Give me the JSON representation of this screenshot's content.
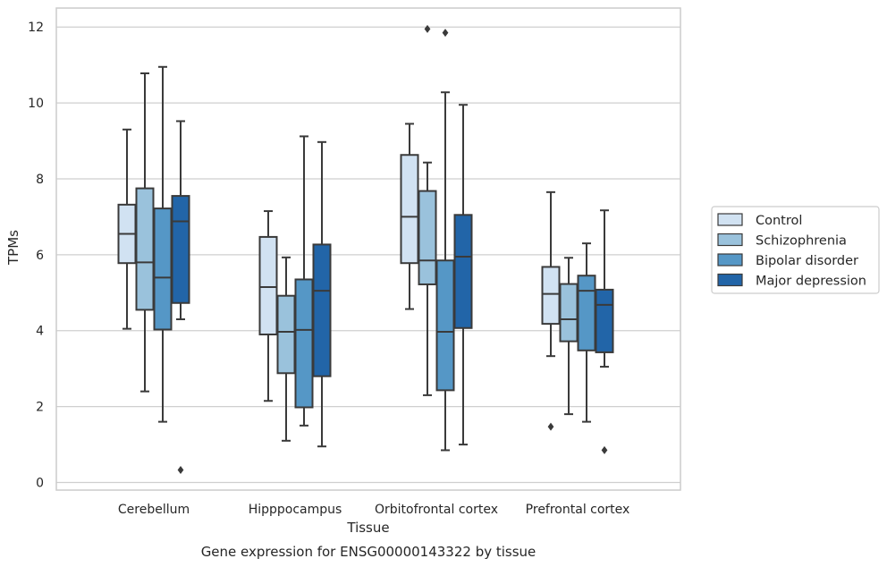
{
  "chart_data": {
    "type": "box",
    "xlabel": "Tissue",
    "ylabel": "TPMs",
    "caption": "Gene expression for ENSG00000143322 by tissue",
    "ylim": [
      -0.2,
      12.5
    ],
    "yticks": [
      0,
      2,
      4,
      6,
      8,
      10,
      12
    ],
    "grid": "horizontal",
    "legend_position": "right",
    "categories": [
      "Cerebellum",
      "Hipppocampus",
      "Orbitofrontal cortex",
      "Prefrontal cortex"
    ],
    "series": [
      {
        "name": "Control",
        "color": "#d1e2f2",
        "boxes": [
          {
            "whislo": 4.05,
            "q1": 5.78,
            "med": 6.55,
            "q3": 7.32,
            "whishi": 9.3,
            "fliers": []
          },
          {
            "whislo": 2.15,
            "q1": 3.9,
            "med": 5.15,
            "q3": 6.47,
            "whishi": 7.15,
            "fliers": []
          },
          {
            "whislo": 4.57,
            "q1": 5.78,
            "med": 7.0,
            "q3": 8.63,
            "whishi": 9.45,
            "fliers": []
          },
          {
            "whislo": 3.33,
            "q1": 4.18,
            "med": 4.97,
            "q3": 5.68,
            "whishi": 7.65,
            "fliers": [
              1.47
            ]
          }
        ]
      },
      {
        "name": "Schizophrenia",
        "color": "#9ac2dc",
        "boxes": [
          {
            "whislo": 2.4,
            "q1": 4.55,
            "med": 5.8,
            "q3": 7.75,
            "whishi": 10.78,
            "fliers": []
          },
          {
            "whislo": 1.1,
            "q1": 2.88,
            "med": 3.97,
            "q3": 4.92,
            "whishi": 5.93,
            "fliers": []
          },
          {
            "whislo": 2.3,
            "q1": 5.22,
            "med": 5.85,
            "q3": 7.68,
            "whishi": 8.43,
            "fliers": [
              11.95
            ]
          },
          {
            "whislo": 1.8,
            "q1": 3.72,
            "med": 4.3,
            "q3": 5.23,
            "whishi": 5.92,
            "fliers": []
          }
        ]
      },
      {
        "name": "Bipolar disorder",
        "color": "#5597c6",
        "boxes": [
          {
            "whislo": 1.6,
            "q1": 4.03,
            "med": 5.4,
            "q3": 7.22,
            "whishi": 10.95,
            "fliers": []
          },
          {
            "whislo": 1.5,
            "q1": 1.98,
            "med": 4.02,
            "q3": 5.35,
            "whishi": 9.12,
            "fliers": []
          },
          {
            "whislo": 0.85,
            "q1": 2.43,
            "med": 3.97,
            "q3": 5.85,
            "whishi": 10.28,
            "fliers": [
              11.85
            ]
          },
          {
            "whislo": 1.6,
            "q1": 3.48,
            "med": 5.05,
            "q3": 5.45,
            "whishi": 6.3,
            "fliers": []
          }
        ]
      },
      {
        "name": "Major depression",
        "color": "#2265a8",
        "boxes": [
          {
            "whislo": 4.3,
            "q1": 4.73,
            "med": 6.88,
            "q3": 7.55,
            "whishi": 9.52,
            "fliers": [
              0.33
            ]
          },
          {
            "whislo": 0.95,
            "q1": 2.8,
            "med": 5.05,
            "q3": 6.27,
            "whishi": 8.97,
            "fliers": []
          },
          {
            "whislo": 1.0,
            "q1": 4.07,
            "med": 5.95,
            "q3": 7.05,
            "whishi": 9.95,
            "fliers": []
          },
          {
            "whislo": 3.05,
            "q1": 3.43,
            "med": 4.68,
            "q3": 5.08,
            "whishi": 7.17,
            "fliers": [
              0.85
            ]
          }
        ]
      }
    ]
  }
}
